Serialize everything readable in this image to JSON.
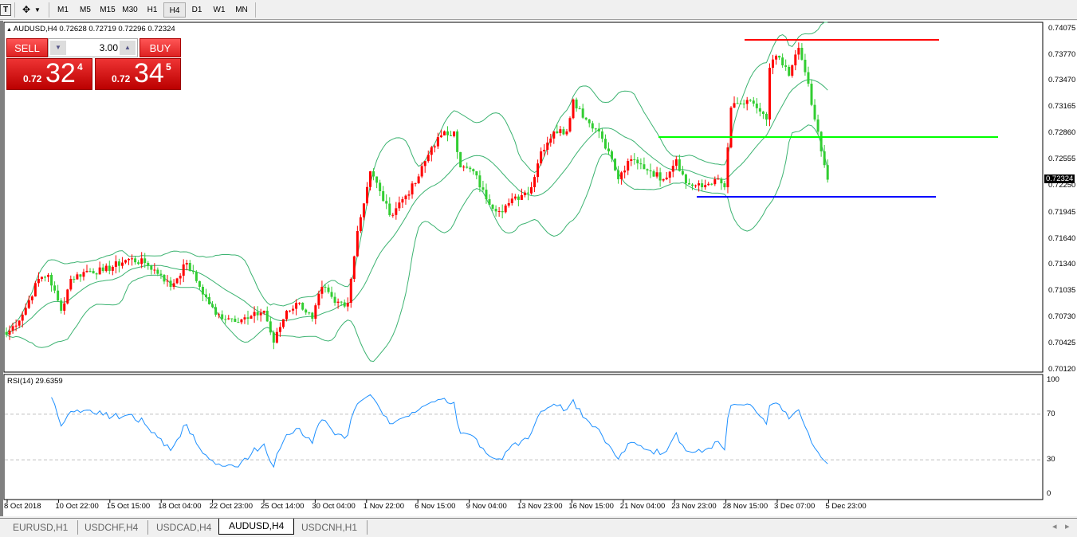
{
  "toolbar": {
    "text_tool": "T",
    "cursor_tool": "crosshair",
    "timeframes": [
      "M1",
      "M5",
      "M15",
      "M30",
      "H1",
      "H4",
      "D1",
      "W1",
      "MN"
    ],
    "active_timeframe": "H4"
  },
  "symbol_info": "AUDUSD,H4  0.72628 0.72719 0.72296 0.72324",
  "trade_panel": {
    "sell_label": "SELL",
    "buy_label": "BUY",
    "lot": "3.00",
    "sell": {
      "prefix": "0.72",
      "big": "32",
      "sup": "4"
    },
    "buy": {
      "prefix": "0.72",
      "big": "34",
      "sup": "5"
    }
  },
  "price_axis": {
    "ticks": [
      "0.74075",
      "0.73770",
      "0.73470",
      "0.73165",
      "0.72860",
      "0.72555",
      "0.72250",
      "0.71945",
      "0.71640",
      "0.71340",
      "0.71035",
      "0.70730",
      "0.70425",
      "0.70120"
    ],
    "current": "0.72324",
    "max": 0.74075,
    "min": 0.7012
  },
  "colors": {
    "bull": "#ff0000",
    "bear": "#32cd32",
    "bands": "#3cb371",
    "rsi": "#1e90ff",
    "resistance": "#ff0000",
    "mid_level": "#00ff00",
    "support": "#0000ff"
  },
  "levels": {
    "resistance": 0.73946,
    "mid": 0.72818,
    "support": 0.72125
  },
  "price_path": [
    [
      0,
      0.70527
    ],
    [
      5,
      0.70758
    ],
    [
      10,
      0.71173
    ],
    [
      13,
      0.7122
    ],
    [
      17,
      0.70804
    ],
    [
      20,
      0.71173
    ],
    [
      25,
      0.71266
    ],
    [
      30,
      0.71266
    ],
    [
      38,
      0.71404
    ],
    [
      43,
      0.71358
    ],
    [
      48,
      0.7122
    ],
    [
      51,
      0.71081
    ],
    [
      56,
      0.71358
    ],
    [
      60,
      0.71081
    ],
    [
      65,
      0.70758
    ],
    [
      70,
      0.70711
    ],
    [
      75,
      0.70711
    ],
    [
      80,
      0.70804
    ],
    [
      83,
      0.70434
    ],
    [
      87,
      0.70804
    ],
    [
      91,
      0.70896
    ],
    [
      95,
      0.70711
    ],
    [
      98,
      0.71081
    ],
    [
      102,
      0.70896
    ],
    [
      106,
      0.70896
    ],
    [
      107,
      0.71173
    ],
    [
      109,
      0.71728
    ],
    [
      113,
      0.72421
    ],
    [
      116,
      0.7219
    ],
    [
      119,
      0.71913
    ],
    [
      123,
      0.72097
    ],
    [
      127,
      0.72282
    ],
    [
      132,
      0.72698
    ],
    [
      135,
      0.72837
    ],
    [
      139,
      0.72883
    ],
    [
      141,
      0.72467
    ],
    [
      145,
      0.72421
    ],
    [
      149,
      0.72097
    ],
    [
      153,
      0.71959
    ],
    [
      156,
      0.72051
    ],
    [
      160,
      0.72144
    ],
    [
      163,
      0.72236
    ],
    [
      166,
      0.72652
    ],
    [
      170,
      0.72883
    ],
    [
      174,
      0.72883
    ],
    [
      176,
      0.73253
    ],
    [
      180,
      0.73022
    ],
    [
      184,
      0.72883
    ],
    [
      187,
      0.72652
    ],
    [
      190,
      0.72329
    ],
    [
      194,
      0.7256
    ],
    [
      196,
      0.72513
    ],
    [
      200,
      0.72421
    ],
    [
      204,
      0.72329
    ],
    [
      208,
      0.7256
    ],
    [
      211,
      0.72282
    ],
    [
      216,
      0.72236
    ],
    [
      220,
      0.72329
    ],
    [
      223,
      0.72236
    ],
    [
      225,
      0.7316
    ],
    [
      228,
      0.73206
    ],
    [
      232,
      0.73206
    ],
    [
      236,
      0.73022
    ],
    [
      237,
      0.73622
    ],
    [
      239,
      0.73761
    ],
    [
      243,
      0.7353
    ],
    [
      246,
      0.73853
    ],
    [
      247,
      0.73715
    ],
    [
      249,
      0.73437
    ],
    [
      251,
      0.73022
    ],
    [
      253,
      0.72652
    ],
    [
      255,
      0.72324
    ]
  ],
  "time_axis": [
    "8 Oct 2018",
    "10 Oct 22:00",
    "15 Oct 15:00",
    "18 Oct 04:00",
    "22 Oct 23:00",
    "25 Oct 14:00",
    "30 Oct 04:00",
    "1 Nov 22:00",
    "6 Nov 15:00",
    "9 Nov 04:00",
    "13 Nov 23:00",
    "16 Nov 15:00",
    "21 Nov 04:00",
    "23 Nov 23:00",
    "28 Nov 15:00",
    "3 Dec 07:00",
    "5 Dec 23:00"
  ],
  "rsi": {
    "label": "RSI(14) 29.6359",
    "ticks": [
      "100",
      "70",
      "30",
      "0"
    ],
    "levels": [
      70,
      30
    ]
  },
  "tabs": [
    {
      "label": "EURUSD,H1"
    },
    {
      "label": "USDCHF,H4"
    },
    {
      "label": "USDCAD,H4"
    },
    {
      "label": "AUDUSD,H4",
      "active": true
    },
    {
      "label": "USDCNH,H1"
    }
  ],
  "scroll": {
    "left": "◂",
    "right": "▸"
  }
}
